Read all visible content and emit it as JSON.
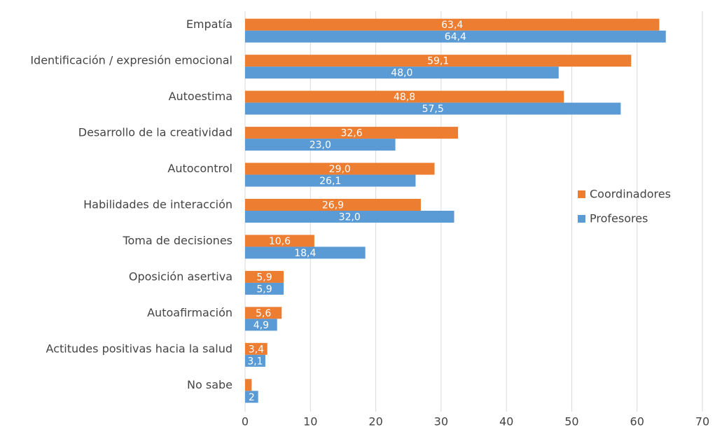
{
  "chart_data": {
    "type": "hbar",
    "categories": [
      "Empatía",
      "Identificación / expresión emocional",
      "Autoestima",
      "Desarrollo de la creatividad",
      "Autocontrol",
      "Habilidades de interacción",
      "Toma de decisiones",
      "Oposición asertiva",
      "Autoafirmación",
      "Actitudes positivas hacia la salud",
      "No sabe"
    ],
    "series": [
      {
        "name": "Coordinadores",
        "color": "#ed7d31",
        "values": [
          63.4,
          59.1,
          48.8,
          32.6,
          29.0,
          26.9,
          10.6,
          5.9,
          5.6,
          3.4,
          1.0
        ],
        "value_labels": [
          "63,4",
          "59,1",
          "48,8",
          "32,6",
          "29,0",
          "26,9",
          "10,6",
          "5,9",
          "5,6",
          "3,4",
          null
        ]
      },
      {
        "name": "Profesores",
        "color": "#5b9bd5",
        "values": [
          64.4,
          48.0,
          57.5,
          23.0,
          26.1,
          32.0,
          18.4,
          5.9,
          4.9,
          3.1,
          2
        ],
        "value_labels": [
          "64,4",
          "48,0",
          "57,5",
          "23,0",
          "26,1",
          "32,0",
          "18,4",
          "5,9",
          "4,9",
          "3,1",
          "2"
        ]
      }
    ],
    "xlim": [
      0,
      70
    ],
    "xticks": [
      0,
      10,
      20,
      30,
      40,
      50,
      60,
      70
    ],
    "grid": true,
    "legend": "right"
  }
}
